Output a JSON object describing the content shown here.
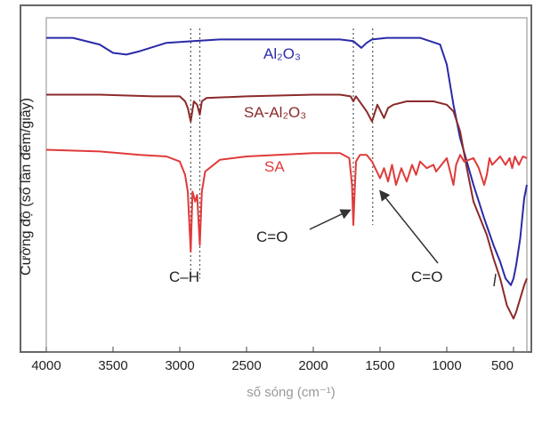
{
  "chart_data": {
    "type": "line",
    "title": "",
    "xlabel": "số sóng (cm⁻¹)",
    "ylabel": "Cường độ (số lần đếm/giây)",
    "xlim": [
      4000,
      400
    ],
    "xticks": [
      4000,
      3500,
      3000,
      2500,
      2000,
      1500,
      1000,
      500
    ],
    "ylim": [
      0,
      100
    ],
    "grid": false,
    "legend": "none",
    "series": [
      {
        "name": "Al₂O₃",
        "color": "#2a2aa8",
        "x": [
          4000,
          3800,
          3600,
          3500,
          3400,
          3300,
          3100,
          2900,
          2700,
          2400,
          2000,
          1800,
          1700,
          1640,
          1600,
          1560,
          1450,
          1200,
          1050,
          1000,
          950,
          900,
          850,
          800,
          720,
          650,
          600,
          560,
          520,
          500,
          480,
          450,
          420,
          400
        ],
        "y": [
          94,
          94,
          92,
          89.5,
          89,
          90,
          92.5,
          93,
          93.5,
          93.5,
          93.5,
          93.5,
          93,
          91,
          92.5,
          93.5,
          94,
          94,
          92,
          86,
          74,
          64,
          57,
          50,
          40,
          32,
          27,
          22,
          20,
          22,
          26,
          34,
          46,
          50
        ]
      },
      {
        "name": "SA-Al₂O₃",
        "color": "#8b2a2a",
        "x": [
          4000,
          3600,
          3200,
          3000,
          2960,
          2940,
          2918,
          2895,
          2870,
          2850,
          2835,
          2800,
          2500,
          2000,
          1800,
          1720,
          1700,
          1680,
          1600,
          1560,
          1520,
          1470,
          1440,
          1400,
          1300,
          1200,
          1100,
          1000,
          950,
          900,
          850,
          800,
          700,
          650,
          600,
          550,
          500,
          480,
          450,
          420,
          400
        ],
        "y": [
          77,
          77,
          76.5,
          76.5,
          75,
          73,
          69,
          75,
          74,
          71,
          75,
          76,
          76.5,
          77,
          77,
          76.5,
          75,
          76.5,
          72,
          69,
          74,
          70,
          73,
          74,
          75,
          75,
          75,
          74,
          72,
          66,
          55,
          45,
          35,
          28,
          22,
          14,
          10,
          12,
          16,
          20,
          22
        ]
      },
      {
        "name": "SA",
        "color": "#e03a3a",
        "x": [
          4000,
          3600,
          3300,
          3100,
          3000,
          2960,
          2940,
          2918,
          2905,
          2885,
          2870,
          2850,
          2835,
          2810,
          2700,
          2500,
          2000,
          1800,
          1730,
          1710,
          1700,
          1690,
          1680,
          1650,
          1600,
          1560,
          1500,
          1470,
          1440,
          1410,
          1380,
          1340,
          1300,
          1260,
          1230,
          1200,
          1150,
          1100,
          1080,
          1000,
          950,
          930,
          900,
          870,
          800,
          760,
          720,
          700,
          680,
          660,
          600,
          560,
          530,
          510,
          490,
          460,
          430,
          400
        ],
        "y": [
          60.5,
          60,
          59,
          58.5,
          57,
          53,
          48,
          30,
          48,
          45,
          47,
          32,
          48,
          54,
          57.5,
          58.5,
          59.5,
          59.5,
          58,
          50,
          38,
          48,
          57,
          59,
          59,
          57,
          52,
          55,
          51,
          56,
          50,
          55,
          51,
          56,
          53,
          57,
          55,
          56,
          54,
          58,
          50,
          56,
          59,
          57,
          58,
          55,
          50,
          53,
          58,
          56,
          58.5,
          56,
          58,
          55,
          58.5,
          56,
          58.5,
          58
        ]
      }
    ],
    "labels": {
      "al2o3": "Al₂O₃",
      "sa_al2o3": "SA-Al₂O₃",
      "sa": "SA",
      "ch": "C–H",
      "co_left": "C=O",
      "co_right": "C=O"
    }
  }
}
